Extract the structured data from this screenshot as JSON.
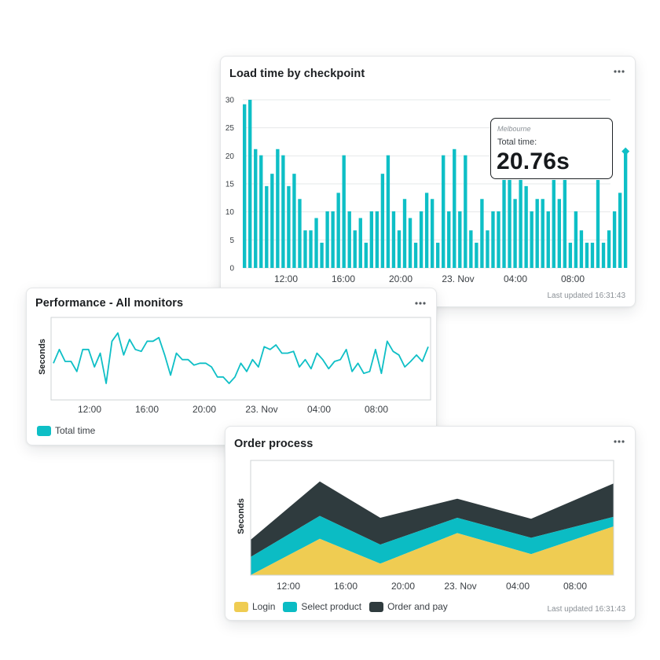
{
  "colors": {
    "accent": "#0ebfc6",
    "login": "#efcc52",
    "select_product": "#0bbcc4",
    "order_and_pay": "#2f3b3e",
    "grid": "#e6e8ea"
  },
  "cards": {
    "load": {
      "title": "Load time by checkpoint",
      "last_updated": "Last updated 16:31:43",
      "more_icon": "more-horizontal-icon",
      "tooltip": {
        "location": "Melbourne",
        "label": "Total time:",
        "value": "20.76s"
      }
    },
    "perf": {
      "title": "Performance - All monitors",
      "more_icon": "more-horizontal-icon"
    },
    "order": {
      "title": "Order process",
      "last_updated": "Last updated 16:31:43",
      "more_icon": "more-horizontal-icon"
    }
  },
  "chart_data": [
    {
      "id": "load-time",
      "type": "bar",
      "title": "Load time by checkpoint",
      "ylim": [
        0,
        30
      ],
      "yticks": [
        0,
        5,
        10,
        15,
        20,
        25,
        30
      ],
      "xticks": [
        "12:00",
        "16:00",
        "20:00",
        "23. Nov",
        "04:00",
        "08:00"
      ],
      "grid": true,
      "values": [
        29.2,
        30,
        21.2,
        20.1,
        14.6,
        16.8,
        21.2,
        20.1,
        14.6,
        16.8,
        12.3,
        6.7,
        6.7,
        8.9,
        4.5,
        10.1,
        10.1,
        13.4,
        20.1,
        10.1,
        6.7,
        8.9,
        4.5,
        10.1,
        10.1,
        16.8,
        20.1,
        10.1,
        6.7,
        12.3,
        8.9,
        4.5,
        10.1,
        13.4,
        12.3,
        4.5,
        20.1,
        10.1,
        21.2,
        10.1,
        20.1,
        6.7,
        4.5,
        12.3,
        6.7,
        10.1,
        10.1,
        15.7,
        15.7,
        12.3,
        15.7,
        14.6,
        10.1,
        12.3,
        12.3,
        10.1,
        15.7,
        12.3,
        15.7,
        4.5,
        10.1,
        6.7,
        4.5,
        4.5,
        15.7,
        4.5,
        6.7,
        10.1,
        13.4,
        20.8
      ]
    },
    {
      "id": "performance",
      "type": "line",
      "title": "Performance - All monitors",
      "ylabel": "Seconds",
      "xticks": [
        "12:00",
        "16:00",
        "20:00",
        "23. Nov",
        "04:00",
        "08:00"
      ],
      "series": [
        {
          "name": "Total time",
          "values": [
            6.0,
            7.5,
            6.2,
            6.2,
            5.1,
            7.5,
            7.5,
            5.6,
            7.1,
            3.8,
            8.4,
            9.3,
            6.9,
            8.6,
            7.5,
            7.3,
            8.4,
            8.4,
            8.8,
            6.9,
            4.7,
            7.1,
            6.4,
            6.4,
            5.8,
            6.0,
            6.0,
            5.6,
            4.5,
            4.5,
            3.8,
            4.5,
            6.0,
            5.1,
            6.4,
            5.6,
            7.8,
            7.5,
            8.0,
            7.1,
            7.1,
            7.3,
            5.6,
            6.4,
            5.4,
            7.1,
            6.4,
            5.4,
            6.2,
            6.4,
            7.5,
            5.1,
            6.0,
            4.9,
            5.1,
            7.5,
            4.9,
            8.4,
            7.3,
            6.9,
            5.6,
            6.2,
            6.9,
            6.2,
            7.8
          ]
        }
      ],
      "legend": [
        {
          "label": "Total time",
          "color": "#0ebfc6"
        }
      ]
    },
    {
      "id": "order-process",
      "type": "area",
      "title": "Order process",
      "ylabel": "Seconds",
      "stacked": true,
      "xticks": [
        "12:00",
        "16:00",
        "20:00",
        "23. Nov",
        "04:00",
        "08:00"
      ],
      "series": [
        {
          "name": "Login",
          "values": [
            0,
            3.8,
            1.2,
            4.4,
            2.2,
            5.1
          ]
        },
        {
          "name": "Select product",
          "values": [
            1.9,
            2.4,
            2.0,
            1.6,
            1.7,
            1.0
          ]
        },
        {
          "name": "Order and pay",
          "values": [
            1.8,
            3.6,
            2.8,
            2.0,
            2.0,
            3.5
          ]
        }
      ],
      "legend": [
        {
          "label": "Login",
          "color": "#efcc52"
        },
        {
          "label": "Select product",
          "color": "#0bbcc4"
        },
        {
          "label": "Order and pay",
          "color": "#2f3b3e"
        }
      ]
    }
  ]
}
